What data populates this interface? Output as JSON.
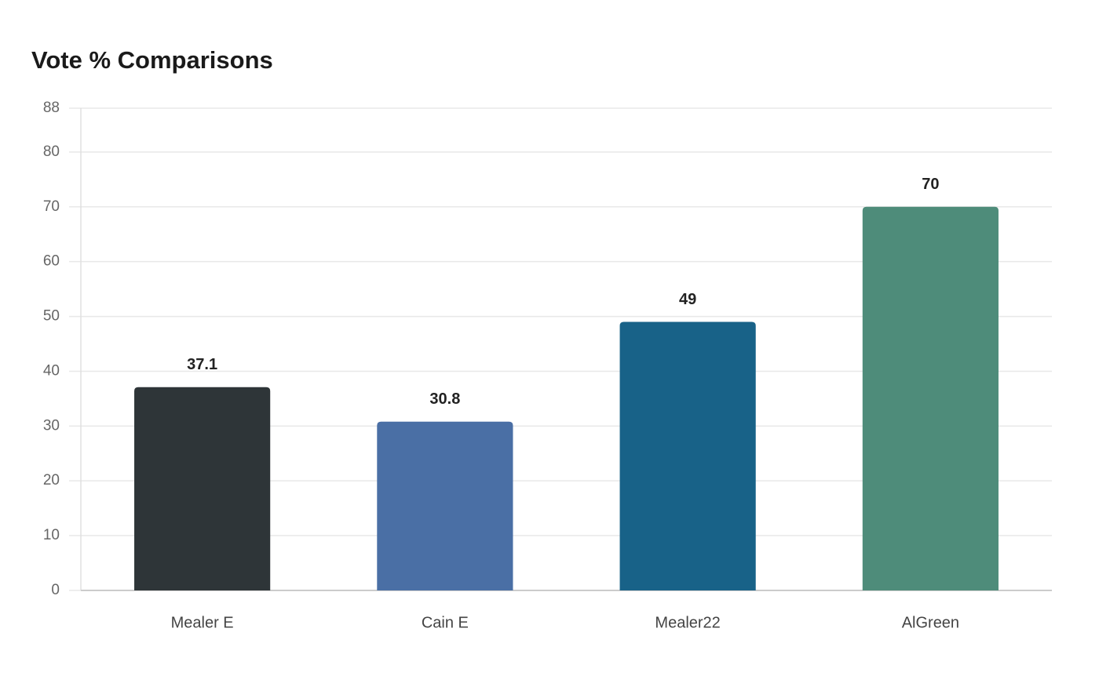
{
  "chart_data": {
    "type": "bar",
    "title": "Vote % Comparisons",
    "categories": [
      "Mealer E",
      "Cain E",
      "Mealer22",
      "AlGreen"
    ],
    "values": [
      37.1,
      30.8,
      49,
      70
    ],
    "colors": [
      "#2e3538",
      "#4a6fa5",
      "#186288",
      "#4e8c7a"
    ],
    "ylim": [
      0,
      88
    ],
    "yticks": [
      0,
      10,
      20,
      30,
      40,
      50,
      60,
      70,
      80,
      88
    ],
    "grid": true
  }
}
